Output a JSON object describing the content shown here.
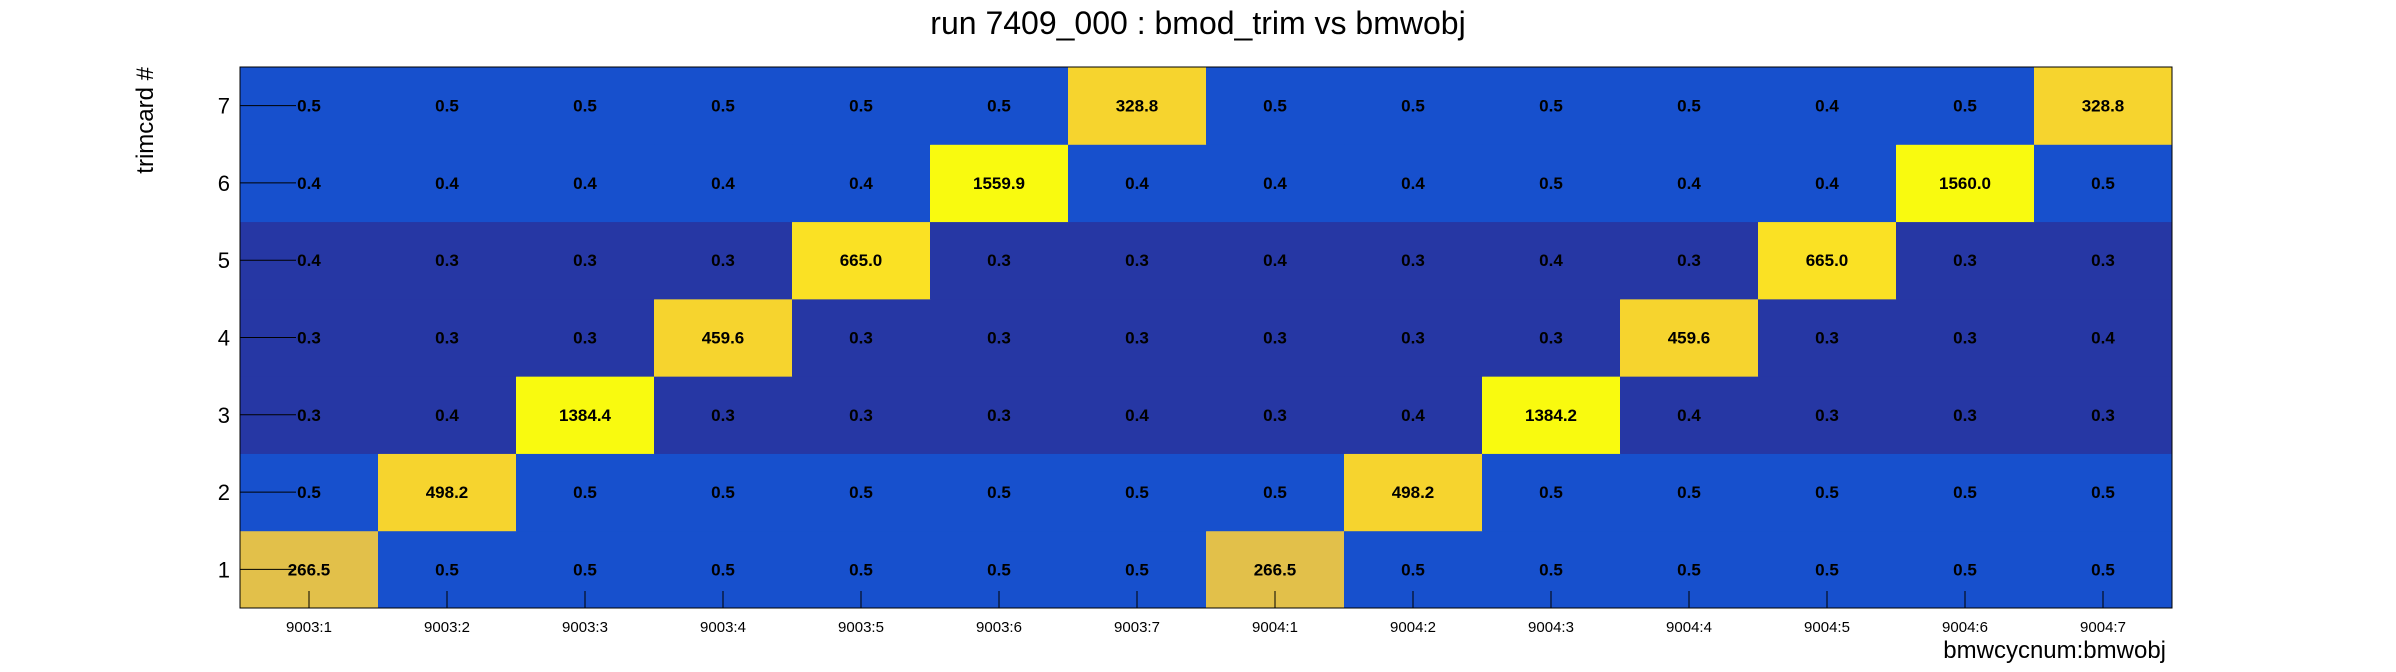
{
  "chart_data": {
    "type": "heatmap",
    "title": "run 7409_000 : bmod_trim vs bmwobj",
    "xlabel": "bmwcycnum:bmwobj",
    "ylabel": "trimcard #",
    "x_categories": [
      "9003:1",
      "9003:2",
      "9003:3",
      "9003:4",
      "9003:5",
      "9003:6",
      "9003:7",
      "9004:1",
      "9004:2",
      "9004:3",
      "9004:4",
      "9004:5",
      "9004:6",
      "9004:7"
    ],
    "y_categories": [
      "1",
      "2",
      "3",
      "4",
      "5",
      "6",
      "7"
    ],
    "values": [
      [
        "266.5",
        "0.5",
        "0.5",
        "0.5",
        "0.5",
        "0.5",
        "0.5",
        "266.5",
        "0.5",
        "0.5",
        "0.5",
        "0.5",
        "0.5",
        "0.5"
      ],
      [
        "0.5",
        "498.2",
        "0.5",
        "0.5",
        "0.5",
        "0.5",
        "0.5",
        "0.5",
        "498.2",
        "0.5",
        "0.5",
        "0.5",
        "0.5",
        "0.5"
      ],
      [
        "0.3",
        "0.4",
        "1384.4",
        "0.3",
        "0.3",
        "0.3",
        "0.4",
        "0.3",
        "0.4",
        "1384.2",
        "0.4",
        "0.3",
        "0.3",
        "0.3"
      ],
      [
        "0.3",
        "0.3",
        "0.3",
        "459.6",
        "0.3",
        "0.3",
        "0.3",
        "0.3",
        "0.3",
        "0.3",
        "459.6",
        "0.3",
        "0.3",
        "0.4"
      ],
      [
        "0.4",
        "0.3",
        "0.3",
        "0.3",
        "665.0",
        "0.3",
        "0.3",
        "0.4",
        "0.3",
        "0.4",
        "0.3",
        "665.0",
        "0.3",
        "0.3"
      ],
      [
        "0.4",
        "0.4",
        "0.4",
        "0.4",
        "0.4",
        "1559.9",
        "0.4",
        "0.4",
        "0.4",
        "0.5",
        "0.4",
        "0.4",
        "1560.0",
        "0.5"
      ],
      [
        "0.5",
        "0.5",
        "0.5",
        "0.5",
        "0.5",
        "0.5",
        "328.8",
        "0.5",
        "0.5",
        "0.5",
        "0.5",
        "0.4",
        "0.5",
        "328.8"
      ]
    ],
    "palette": {
      "dark_blue": "#2637a4",
      "blue": "#1750cd",
      "yellow_bright": "#f9fa0f",
      "yellow": "#fae124",
      "gold": "#f6d42e",
      "ochre": "#e2c04a"
    },
    "grid": false,
    "legend": "none"
  }
}
